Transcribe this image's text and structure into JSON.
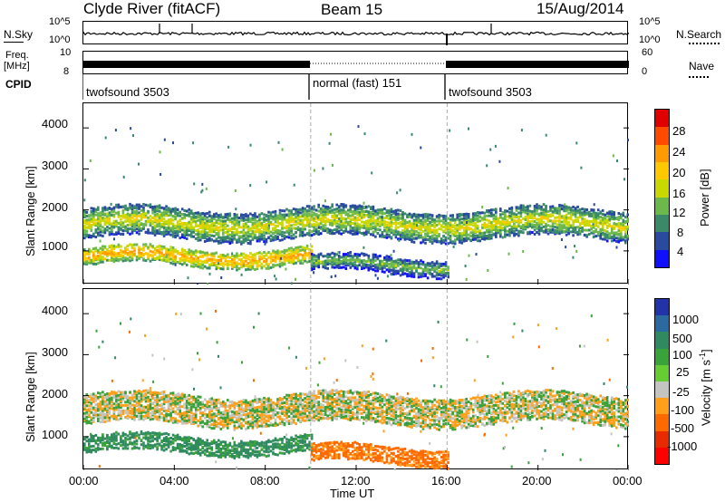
{
  "header": {
    "station": "Clyde River (fitACF)",
    "beam": "Beam 15",
    "date": "15/Aug/2014"
  },
  "top_panels": {
    "nsky_label": "N.Sky",
    "nsearch_label": "N.Search",
    "nsky_ticks": [
      "10^5",
      "10^0"
    ],
    "freq_label_line1": "Freq.",
    "freq_label_line2": "[MHz]",
    "freq_ticks": [
      "10",
      "8"
    ],
    "nave_label": "Nave",
    "nave_ticks": [
      "60",
      "0"
    ],
    "cpid_label": "CPID",
    "cpid_segments": [
      {
        "label": "twofsound 3503",
        "start": 0,
        "end": 10
      },
      {
        "label": "normal (fast) 151",
        "start": 10,
        "end": 16
      },
      {
        "label": "twofsound 3503",
        "start": 16,
        "end": 24
      }
    ]
  },
  "axes": {
    "xlabel": "Time UT",
    "ylabel": "Slant Range [km]",
    "x_ticks": [
      "00:00",
      "04:00",
      "08:00",
      "12:00",
      "16:00",
      "20:00",
      "00:00"
    ],
    "y_ticks": [
      "1000",
      "2000",
      "3000",
      "4000"
    ]
  },
  "power_colorbar": {
    "title": "Power [dB]",
    "ticks": [
      "28",
      "24",
      "20",
      "16",
      "12",
      "8",
      "4"
    ],
    "colors": [
      "#e00000",
      "#ff4a00",
      "#ff9a00",
      "#ffc800",
      "#c8d800",
      "#6cb84a",
      "#3a8a6a",
      "#2a4aa0",
      "#1010ff"
    ]
  },
  "velocity_colorbar": {
    "title": "Velocity [m s",
    "title_sup": "-1",
    "title_end": "]",
    "ticks": [
      "1000",
      "500",
      "100",
      "25",
      "-25",
      "-100",
      "-500",
      "-1000"
    ],
    "colors": [
      "#2233aa",
      "#2a6aa0",
      "#2f8a5f",
      "#3aa23a",
      "#66cc33",
      "#c4c4c0",
      "#ff9f1a",
      "#ff6a00",
      "#e82a00",
      "#ff0000"
    ]
  },
  "chart_data": [
    {
      "type": "heatmap",
      "title": "Power [dB]",
      "xlabel": "Time UT",
      "ylabel": "Slant Range [km]",
      "xlim": [
        0,
        24
      ],
      "ylim": [
        180,
        4600
      ],
      "bands": [
        {
          "start": 0,
          "end": 24,
          "center_km": 1700,
          "half_width_km": 350,
          "level_db": 18
        },
        {
          "start": 0,
          "end": 10,
          "center_km": 900,
          "half_width_km": 200,
          "level_db": 24
        },
        {
          "start": 10,
          "end": 16,
          "center_km": 700,
          "half_width_km": 200,
          "level_db": 14
        }
      ]
    },
    {
      "type": "heatmap",
      "title": "Velocity",
      "xlabel": "Time UT",
      "ylabel": "Slant Range [km]",
      "xlim": [
        0,
        24
      ],
      "ylim": [
        180,
        4600
      ],
      "bands": [
        {
          "start": 0,
          "end": 24,
          "center_km": 1700,
          "half_width_km": 350,
          "velocity": 0
        },
        {
          "start": 0,
          "end": 10,
          "center_km": 850,
          "half_width_km": 200,
          "velocity": 150
        },
        {
          "start": 10,
          "end": 16,
          "center_km": 600,
          "half_width_km": 200,
          "velocity": -150
        }
      ]
    }
  ]
}
